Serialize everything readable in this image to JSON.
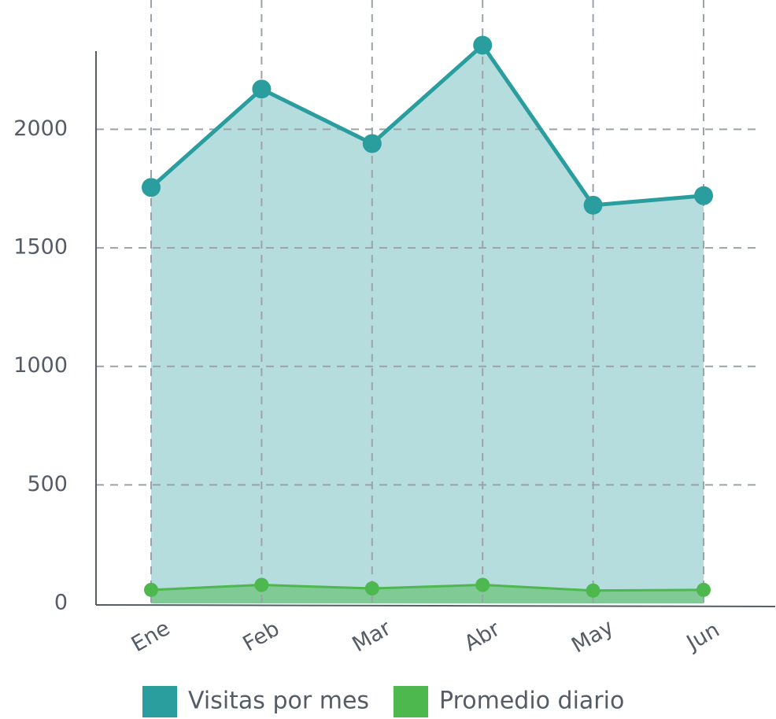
{
  "chart_data": {
    "type": "line",
    "categories": [
      "Ene",
      "Feb",
      "Mar",
      "Abr",
      "May",
      "Jun"
    ],
    "series": [
      {
        "name": "Visitas por mes",
        "color": "#2a9d9f",
        "values": [
          1755,
          2170,
          1940,
          2355,
          1680,
          1720
        ]
      },
      {
        "name": "Promedio diario",
        "color": "#4cb84e",
        "values": [
          57,
          78,
          63,
          78,
          54,
          57
        ]
      }
    ],
    "ylim": [
      0,
      2330
    ],
    "yticks": [
      0,
      500,
      1000,
      1500,
      2000
    ],
    "grid": true,
    "area": true,
    "legend": "bottom"
  }
}
